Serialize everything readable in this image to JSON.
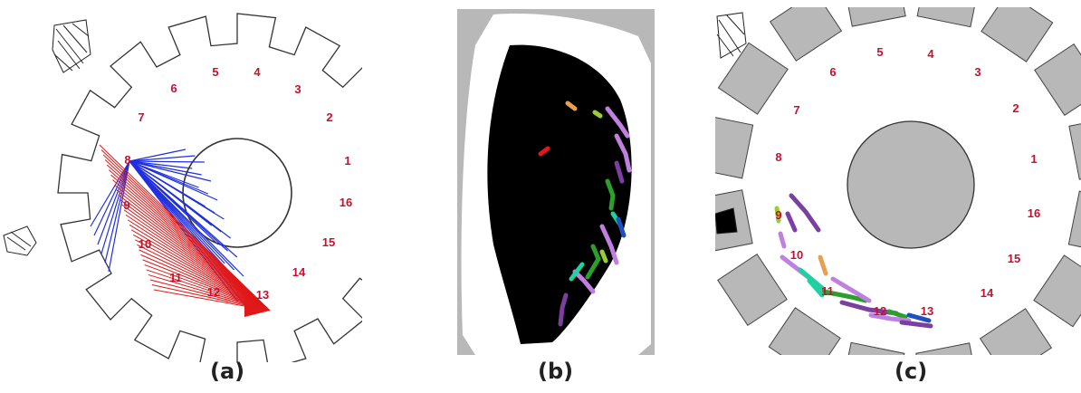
{
  "captions": {
    "a": "(a)",
    "b": "(b)",
    "c": "(c)"
  },
  "panel_a": {
    "numbers": [
      "1",
      "2",
      "3",
      "4",
      "5",
      "6",
      "7",
      "8",
      "9",
      "10",
      "11",
      "12",
      "13",
      "14",
      "15",
      "16"
    ],
    "colors": {
      "blue_rays": "#1f2fe0",
      "red_rays": "#e01818",
      "labels": "#c8102e"
    }
  },
  "panel_c": {
    "numbers": [
      "1",
      "2",
      "3",
      "4",
      "5",
      "6",
      "7",
      "8",
      "9",
      "10",
      "11",
      "12",
      "13",
      "14",
      "15",
      "16"
    ],
    "colors": {
      "obstacles": "#b8b8b8",
      "labels": "#c8102e"
    }
  },
  "panel_b": {
    "colors": {
      "field": "#000000",
      "walls": "#b8b8b8"
    }
  }
}
